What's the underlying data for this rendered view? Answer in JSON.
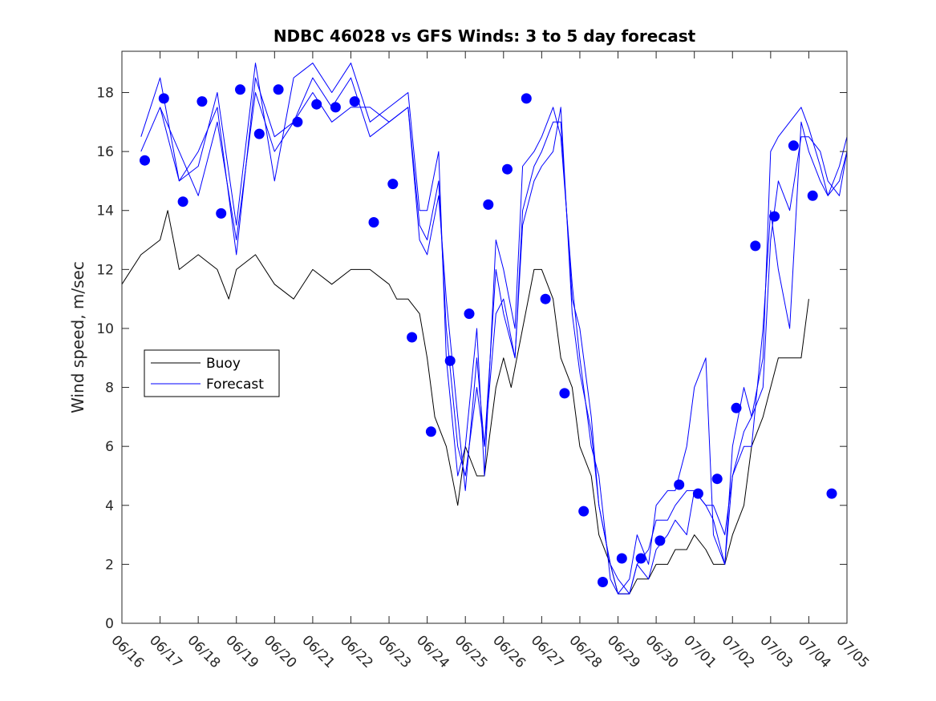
{
  "chart_data": {
    "type": "line",
    "title": "NDBC 46028 vs GFS Winds: 3 to 5 day forecast",
    "ylabel": "Wind speed, m/sec",
    "xlabel": "",
    "x_tick_labels": [
      "06/16",
      "06/17",
      "06/18",
      "06/19",
      "06/20",
      "06/21",
      "06/22",
      "06/23",
      "06/24",
      "06/25",
      "06/26",
      "06/27",
      "06/28",
      "06/29",
      "06/30",
      "07/01",
      "07/02",
      "07/03",
      "07/04",
      "07/05"
    ],
    "y_ticks": [
      0,
      2,
      4,
      6,
      8,
      10,
      12,
      14,
      16,
      18
    ],
    "xlim_days": [
      0,
      19
    ],
    "ylim": [
      0,
      19.4
    ],
    "legend": {
      "position": "middle-left",
      "entries": [
        "Buoy",
        "Forecast"
      ]
    },
    "colors": {
      "buoy": "#000000",
      "forecast": "#0000ff",
      "markers": "#0000ff"
    },
    "series": [
      {
        "name": "Buoy",
        "color": "#000000",
        "x": [
          0,
          0.5,
          1,
          1.2,
          1.5,
          2,
          2.5,
          2.8,
          3,
          3.5,
          4,
          4.5,
          5,
          5.5,
          6,
          6.5,
          7,
          7.2,
          7.5,
          7.8,
          8,
          8.2,
          8.5,
          8.8,
          9,
          9.3,
          9.5,
          9.8,
          10,
          10.2,
          10.5,
          10.8,
          11,
          11.3,
          11.5,
          11.8,
          12,
          12.3,
          12.5,
          12.8,
          13,
          13.3,
          13.5,
          13.8,
          14,
          14.3,
          14.5,
          14.8,
          15,
          15.3,
          15.5,
          15.8,
          16,
          16.3,
          16.5,
          16.8,
          17,
          17.2,
          17.5,
          17.8,
          18
        ],
        "values": [
          11.5,
          12.5,
          13,
          14,
          12,
          12.5,
          12,
          11,
          12,
          12.5,
          11.5,
          11,
          12,
          11.5,
          12,
          12,
          11.5,
          11,
          11,
          10.5,
          9,
          7,
          6,
          4,
          6,
          5,
          5,
          8,
          9,
          8,
          10,
          12,
          12,
          11,
          9,
          8,
          6,
          5,
          3,
          2,
          1,
          1,
          1.5,
          1.5,
          2,
          2,
          2.5,
          2.5,
          3,
          2.5,
          2,
          2,
          3,
          4,
          6,
          7,
          8,
          9,
          9,
          9,
          11
        ]
      },
      {
        "name": "Forecast",
        "color": "#0000ff",
        "x": [
          0.5,
          1,
          1.5,
          2,
          2.5,
          3,
          3.5,
          4,
          4.5,
          5,
          5.5,
          6,
          6.5,
          7,
          7.5,
          7.8,
          8,
          8.3,
          8.5,
          8.8,
          9,
          9.3,
          9.5,
          9.8,
          10,
          10.3,
          10.5,
          10.8,
          11,
          11.3,
          11.5,
          11.8,
          12,
          12.3,
          12.5,
          12.8,
          13,
          13.3,
          13.5,
          13.8,
          14,
          14.3,
          14.5,
          14.8,
          15,
          15.3,
          15.5,
          15.8,
          16,
          16.3,
          16.5,
          16.8,
          17,
          17.2,
          17.5,
          17.8,
          18,
          18.3,
          18.5,
          18.8,
          19
        ],
        "values": [
          16,
          17.5,
          16,
          14.5,
          17,
          13,
          18,
          16,
          17,
          18,
          17,
          17.5,
          17.5,
          17,
          17.5,
          13.5,
          13,
          15,
          10,
          6,
          5,
          8,
          6,
          10.5,
          11,
          9,
          14,
          15.5,
          16,
          17,
          17,
          11,
          10,
          7,
          4,
          2,
          1.5,
          1,
          2,
          1.5,
          2.5,
          3,
          3.5,
          3,
          4.5,
          4,
          4,
          3,
          5,
          6.5,
          7,
          8,
          13,
          15,
          14,
          16.5,
          16.5,
          16,
          15,
          14.5,
          16
        ]
      },
      {
        "name": "Forecast",
        "color": "#0000ff",
        "x": [
          0.5,
          1,
          1.5,
          2,
          2.5,
          3,
          3.5,
          4,
          4.5,
          5,
          5.5,
          6,
          6.5,
          7,
          7.5,
          7.8,
          8,
          8.3,
          8.5,
          8.8,
          9,
          9.3,
          9.5,
          9.8,
          10,
          10.3,
          10.5,
          10.8,
          11,
          11.3,
          11.5,
          11.8,
          12,
          12.3,
          12.5,
          12.8,
          13,
          13.3,
          13.5,
          13.8,
          14,
          14.3,
          14.5,
          14.8,
          15,
          15.3,
          15.5,
          15.8,
          16,
          16.3,
          16.5,
          16.8,
          17,
          17.2,
          17.5,
          17.8,
          18,
          18.3,
          18.5,
          18.8,
          19
        ],
        "values": [
          16.5,
          18.5,
          15,
          15.5,
          18,
          13.5,
          19,
          15,
          18.5,
          19,
          18,
          19,
          17,
          17.5,
          18,
          14,
          14,
          16,
          9,
          5,
          6,
          10,
          5,
          13,
          12,
          10,
          15.5,
          16,
          16.5,
          17.5,
          16.5,
          11.5,
          9,
          6,
          5,
          1.5,
          1,
          1.5,
          3,
          2,
          4,
          4.5,
          4.5,
          6,
          8,
          9,
          3,
          2,
          6,
          8,
          7,
          9,
          16,
          16.5,
          17,
          17.5,
          16.8,
          15.5,
          14.5,
          15.5,
          16.5
        ]
      },
      {
        "name": "Forecast",
        "color": "#0000ff",
        "x": [
          1,
          1.5,
          2,
          2.5,
          3,
          3.5,
          4,
          4.5,
          5,
          5.5,
          6,
          6.5,
          7,
          7.5,
          7.8,
          8,
          8.3,
          8.5,
          8.8,
          9,
          9.3,
          9.5,
          9.8,
          10,
          10.3,
          10.5,
          10.8,
          11,
          11.3,
          11.5,
          11.8,
          12,
          12.3,
          12.5,
          12.8,
          13,
          13.3,
          13.5,
          13.8,
          14,
          14.3,
          14.5,
          14.8,
          15,
          15.3,
          15.5,
          15.8,
          16,
          16.3,
          16.5,
          16.8,
          17,
          17.2,
          17.5,
          17.8,
          18,
          18.3,
          18.5,
          18.8,
          19
        ],
        "values": [
          17.5,
          15,
          16,
          17.5,
          12.5,
          18.5,
          16.5,
          17,
          18.5,
          17.5,
          18.5,
          16.5,
          17,
          17.5,
          13,
          12.5,
          14.5,
          11,
          7,
          4.5,
          9,
          6,
          12,
          10.5,
          9,
          13.5,
          15,
          15.5,
          16,
          17.5,
          10.5,
          8.5,
          6.5,
          4,
          2,
          1,
          1,
          2,
          2.5,
          3.5,
          3.5,
          4,
          4.5,
          4.5,
          4,
          3.5,
          2,
          5,
          6,
          6,
          10,
          14,
          12,
          10,
          17,
          16,
          15,
          14.5,
          15,
          16
        ]
      }
    ],
    "markers": {
      "name": "Forecast",
      "color": "#0000ff",
      "x": [
        0.6,
        1.1,
        1.6,
        2.1,
        2.6,
        3.1,
        3.6,
        4.1,
        4.6,
        5.1,
        5.6,
        6.1,
        6.6,
        7.1,
        7.6,
        8.1,
        8.6,
        9.1,
        9.6,
        10.1,
        10.6,
        11.1,
        11.6,
        12.1,
        12.6,
        13.1,
        13.6,
        14.1,
        14.6,
        15.1,
        15.6,
        16.1,
        16.6,
        17.1,
        17.6,
        18.1,
        18.6
      ],
      "values": [
        15.7,
        17.8,
        14.3,
        17.7,
        13.9,
        18.1,
        16.6,
        18.1,
        17.0,
        17.6,
        17.5,
        17.7,
        13.6,
        14.9,
        9.7,
        6.5,
        8.9,
        10.5,
        14.2,
        15.4,
        17.8,
        11.0,
        7.8,
        3.8,
        1.4,
        2.2,
        2.2,
        2.8,
        4.7,
        4.4,
        4.9,
        7.3,
        12.8,
        13.8,
        16.2,
        14.5,
        4.4
      ]
    }
  }
}
